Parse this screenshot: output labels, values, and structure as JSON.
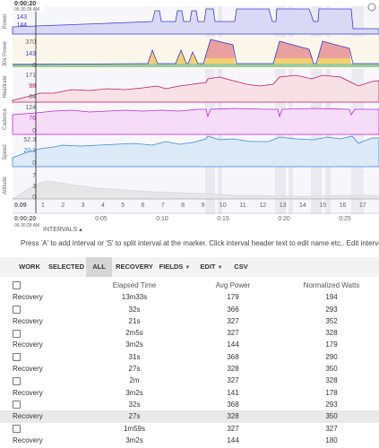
{
  "header": {
    "time": "0:00:20",
    "date": "06:30:28 AM"
  },
  "panels": [
    {
      "name": "Power",
      "readouts": [
        {
          "text": "143",
          "color": "#3b3bd4"
        },
        {
          "text": "144",
          "color": "#3b3bd4"
        }
      ],
      "ticks": [],
      "color": "#3b3bd4"
    },
    {
      "name": "30s Power",
      "readouts": [
        {
          "text": "143",
          "color": "#3b3bd4"
        }
      ],
      "ticks": [
        "370",
        "0"
      ],
      "color": "#3b3bd4"
    },
    {
      "name": "Heartrate",
      "readouts": [
        {
          "text": "98",
          "color": "#c2185b"
        }
      ],
      "ticks": [
        "171",
        "84"
      ],
      "color": "#c2185b"
    },
    {
      "name": "Cadence",
      "readouts": [
        {
          "text": "76",
          "color": "#c026d3"
        }
      ],
      "ticks": [
        "124",
        "0"
      ],
      "color": "#c026d3"
    },
    {
      "name": "Speed",
      "readouts": [
        {
          "text": "20.1",
          "color": "#3b8ad4"
        }
      ],
      "ticks": [
        "52.3",
        "0"
      ],
      "color": "#3b8ad4"
    },
    {
      "name": "Altitude",
      "readouts": [],
      "ticks": [
        "7",
        "3",
        "0"
      ],
      "color": "#888888"
    }
  ],
  "distance_axis": {
    "start": "0.09",
    "labels": [
      "1",
      "2",
      "3",
      "4",
      "5",
      "6",
      "7",
      "8",
      "9",
      "10",
      "11",
      "12",
      "13",
      "14",
      "15",
      "16",
      "17"
    ]
  },
  "time_axis": {
    "start": "0:00:20",
    "date": "06:30:28 AM",
    "labels": [
      "0:05",
      "0:10",
      "0:15",
      "0:20",
      "0:25"
    ]
  },
  "intervals_label": "INTERVALS",
  "hint": "Press 'A' to add interval or 'S' to split interval at the marker. Click interval header text to edit name etc.. Edit intervals by dragging the edges",
  "toolbar": {
    "work": "WORK",
    "selected": "SELECTED",
    "all": "ALL",
    "recovery": "RECOVERY",
    "fields": "FIELDS",
    "edit": "EDIT",
    "csv": "CSV"
  },
  "table": {
    "columns": [
      "",
      "Elapsed Time",
      "Avg Power",
      "Normalized Watts"
    ],
    "rows": [
      {
        "label": "",
        "elapsed": "",
        "power": "",
        "nw": ""
      },
      {
        "label": "Recovery",
        "elapsed": "13m33s",
        "power": "179",
        "nw": "194"
      },
      {
        "label": "",
        "elapsed": "32s",
        "power": "366",
        "nw": "293"
      },
      {
        "label": "Recovery",
        "elapsed": "21s",
        "power": "327",
        "nw": "352"
      },
      {
        "label": "",
        "elapsed": "2m5s",
        "power": "327",
        "nw": "328"
      },
      {
        "label": "Recovery",
        "elapsed": "3m2s",
        "power": "144",
        "nw": "179"
      },
      {
        "label": "",
        "elapsed": "31s",
        "power": "368",
        "nw": "290"
      },
      {
        "label": "Recovery",
        "elapsed": "27s",
        "power": "328",
        "nw": "350"
      },
      {
        "label": "",
        "elapsed": "2m",
        "power": "327",
        "nw": "328"
      },
      {
        "label": "Recovery",
        "elapsed": "3m2s",
        "power": "141",
        "nw": "178"
      },
      {
        "label": "",
        "elapsed": "32s",
        "power": "368",
        "nw": "293"
      },
      {
        "label": "Recovery",
        "elapsed": "27s",
        "power": "328",
        "nw": "350"
      },
      {
        "label": "",
        "elapsed": "1m59s",
        "power": "327",
        "nw": "327"
      },
      {
        "label": "Recovery",
        "elapsed": "3m2s",
        "power": "144",
        "nw": "180"
      }
    ]
  }
}
